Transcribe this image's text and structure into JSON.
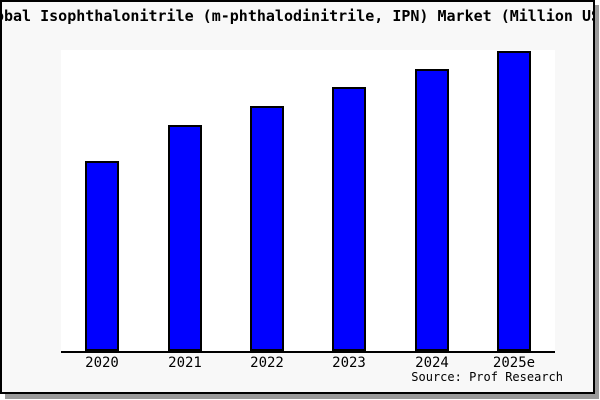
{
  "chart_data": {
    "type": "bar",
    "title": "Global Isophthalonitrile (m-phthalodinitrile, IPN) Market (Million US$)",
    "categories": [
      "2020",
      "2021",
      "2022",
      "2023",
      "2024",
      "2025e"
    ],
    "values": [
      63.3,
      75.3,
      81.7,
      88,
      94,
      100
    ],
    "value_scale": "estimated relative bar heights (2025e = 100); no y-axis scale shown in image",
    "xlabel": "",
    "ylabel": "",
    "ylim": [
      0,
      101
    ],
    "grid": false,
    "legend": false,
    "source": "Source: Prof Research"
  },
  "colors": {
    "bar_fill": "#0000ff",
    "bar_border": "#000000",
    "canvas_bg": "#f8f8f8",
    "plot_bg": "#ffffff",
    "axis": "#000000",
    "shadow": "#9a9a9a"
  }
}
